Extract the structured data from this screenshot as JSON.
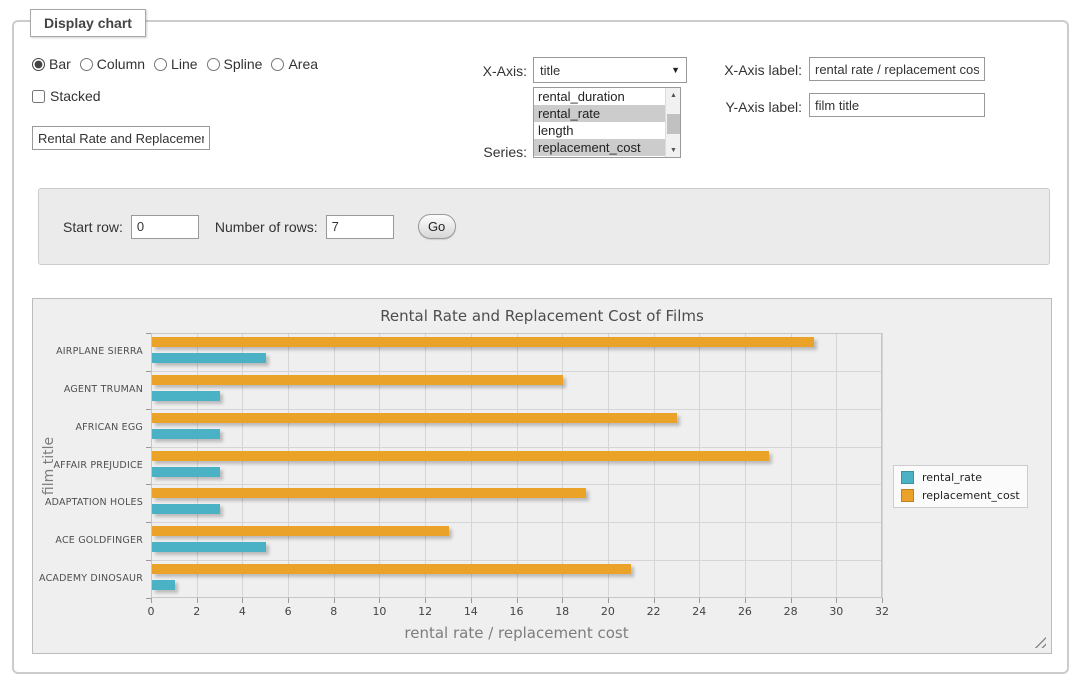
{
  "fieldset": {
    "legend": "Display chart"
  },
  "chart_type": {
    "options": [
      {
        "label": "Bar",
        "selected": true
      },
      {
        "label": "Column",
        "selected": false
      },
      {
        "label": "Line",
        "selected": false
      },
      {
        "label": "Spline",
        "selected": false
      },
      {
        "label": "Area",
        "selected": false
      }
    ]
  },
  "stacked": {
    "label": "Stacked",
    "checked": false
  },
  "title_input": {
    "value": "Rental Rate and Replacement Cost of Films"
  },
  "x_axis": {
    "label": "X-Axis:",
    "selected_value": "title"
  },
  "series_picker": {
    "label": "Series:",
    "options": [
      {
        "label": "rental_duration",
        "selected": false
      },
      {
        "label": "rental_rate",
        "selected": true
      },
      {
        "label": "length",
        "selected": false
      },
      {
        "label": "replacement_cost",
        "selected": true
      }
    ]
  },
  "x_axis_label": {
    "label": "X-Axis label:",
    "value": "rental rate / replacement cost"
  },
  "y_axis_label": {
    "label": "Y-Axis label:",
    "value": "film title"
  },
  "row_controls": {
    "start_row_label": "Start row:",
    "start_row_value": "0",
    "num_rows_label": "Number of rows:",
    "num_rows_value": "7",
    "go_label": "Go"
  },
  "chart_data": {
    "type": "bar",
    "orientation": "horizontal",
    "title": "Rental Rate and Replacement Cost of Films",
    "categories": [
      "AIRPLANE SIERRA",
      "AGENT TRUMAN",
      "AFRICAN EGG",
      "AFFAIR PREJUDICE",
      "ADAPTATION HOLES",
      "ACE GOLDFINGER",
      "ACADEMY DINOSAUR"
    ],
    "series": [
      {
        "name": "rental_rate",
        "color": "#4bb2c5",
        "values": [
          4.99,
          2.99,
          2.99,
          2.99,
          2.99,
          4.99,
          0.99
        ]
      },
      {
        "name": "replacement_cost",
        "color": "#eaa228",
        "values": [
          28.99,
          17.99,
          22.99,
          26.99,
          18.99,
          12.99,
          20.99
        ]
      }
    ],
    "xlabel": "rental rate / replacement cost",
    "ylabel": "film title",
    "xlim": [
      0,
      32
    ],
    "xticks": [
      0,
      2,
      4,
      6,
      8,
      10,
      12,
      14,
      16,
      18,
      20,
      22,
      24,
      26,
      28,
      30,
      32
    ],
    "grid": true,
    "legend_position": "right",
    "plot_background": "#efefef"
  }
}
